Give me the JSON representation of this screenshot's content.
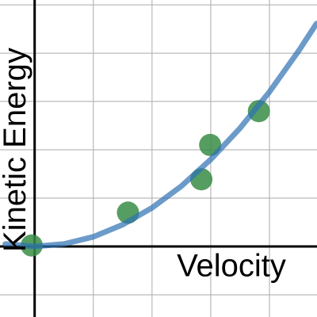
{
  "chart_data": {
    "type": "scatter",
    "x_label": "Velocity",
    "y_label": "Kinetic Energy",
    "xlim": [
      -0.59,
      4.81
    ],
    "ylim": [
      -1.46,
      5.1
    ],
    "xticks": [
      0,
      1,
      2,
      3,
      4
    ],
    "yticks": [
      -1,
      0,
      1,
      2,
      3,
      4,
      5
    ],
    "grid": true,
    "series": [
      {
        "kind": "points",
        "color": "#388c46",
        "x": [
          -0.05,
          1.59,
          2.84,
          2.99,
          3.82
        ],
        "values": [
          0.02,
          0.7,
          1.39,
          2.1,
          2.8
        ]
      },
      {
        "kind": "curve",
        "color": "#2d70b3",
        "x": [
          -0.5,
          0,
          0.5,
          1,
          1.5,
          2,
          2.5,
          3,
          3.5,
          4,
          4.5,
          4.8
        ],
        "values": [
          0.05,
          0,
          0.05,
          0.2,
          0.45,
          0.8,
          1.25,
          1.8,
          2.45,
          3.2,
          4.05,
          4.61
        ]
      }
    ]
  }
}
